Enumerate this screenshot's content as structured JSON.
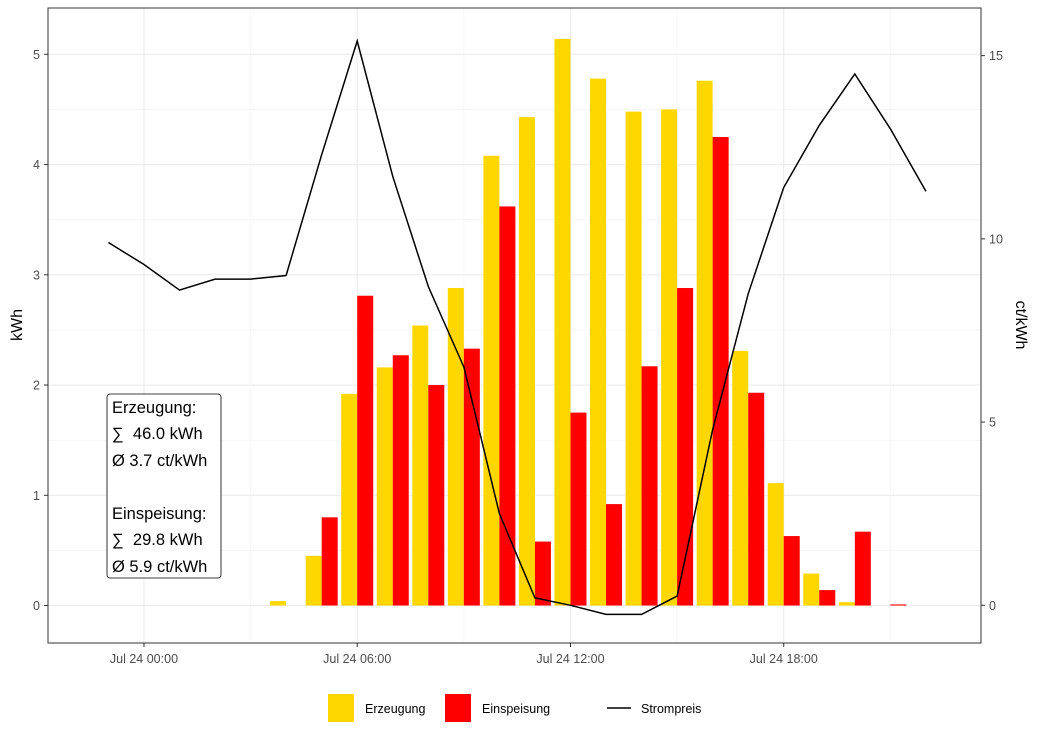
{
  "chart_data": {
    "type": "bar",
    "x_axis": {
      "ticks": [
        "Jul 24 00:00",
        "Jul 24 06:00",
        "Jul 24 12:00",
        "Jul 24 18:00"
      ],
      "tick_hours": [
        0,
        6,
        12,
        18
      ]
    },
    "y_left": {
      "label": "kWh",
      "range": [
        -0.34,
        5.42
      ],
      "ticks": [
        "0",
        "1",
        "2",
        "3",
        "4",
        "5"
      ]
    },
    "y_right": {
      "label": "ct/kWh",
      "range": [
        -1.03,
        16.3
      ],
      "ticks": [
        "0",
        "5",
        "10",
        "15"
      ]
    },
    "grid": true,
    "bar_series": [
      {
        "name": "Erzeugung",
        "color": "#FFD700",
        "hours": [
          4,
          5,
          6,
          7,
          8,
          9,
          10,
          11,
          12,
          13,
          14,
          15,
          16,
          17,
          18,
          19,
          20,
          21
        ],
        "values": [
          0.04,
          0.45,
          1.92,
          2.16,
          2.54,
          2.88,
          4.08,
          4.43,
          5.14,
          4.78,
          4.48,
          4.5,
          4.76,
          2.31,
          1.11,
          0.29,
          0.03,
          0.0
        ]
      },
      {
        "name": "Einspeisung",
        "color": "#FF0000",
        "hours": [
          4,
          5,
          6,
          7,
          8,
          9,
          10,
          11,
          12,
          13,
          14,
          15,
          16,
          17,
          18,
          19,
          20,
          21
        ],
        "values": [
          0.0,
          0.8,
          2.81,
          2.27,
          2.0,
          2.33,
          3.62,
          0.58,
          1.75,
          0.92,
          2.17,
          2.88,
          4.25,
          1.93,
          0.63,
          0.14,
          0.67,
          0.01
        ]
      }
    ],
    "line_series": {
      "name": "Strompreis",
      "color": "#000000",
      "hours": [
        -1,
        0,
        1,
        2,
        3,
        4,
        5,
        6,
        7,
        8,
        9,
        10,
        11,
        12,
        13,
        14,
        15,
        16,
        17,
        18,
        19,
        20,
        21,
        22
      ],
      "values": [
        9.9,
        9.3,
        8.6,
        8.9,
        8.9,
        9.0,
        12.3,
        15.4,
        11.7,
        8.7,
        6.5,
        2.5,
        0.2,
        0.0,
        -0.25,
        -0.25,
        0.25,
        4.8,
        8.5,
        11.4,
        13.1,
        14.5,
        13.0,
        11.3
      ]
    },
    "annotation": {
      "lines": [
        "Erzeugung:",
        "∑  46.0 kWh",
        "Ø 3.7 ct/kWh",
        "",
        "Einspeisung:",
        "∑  29.8 kWh",
        "Ø 5.9 ct/kWh"
      ]
    },
    "legend": {
      "placement": "bottom",
      "entries": [
        {
          "label": "Erzeugung",
          "color": "#FFD700",
          "kind": "bar"
        },
        {
          "label": "Einspeisung",
          "color": "#FF0000",
          "kind": "bar"
        },
        {
          "label": "Strompreis",
          "color": "#000000",
          "kind": "line"
        }
      ]
    }
  }
}
